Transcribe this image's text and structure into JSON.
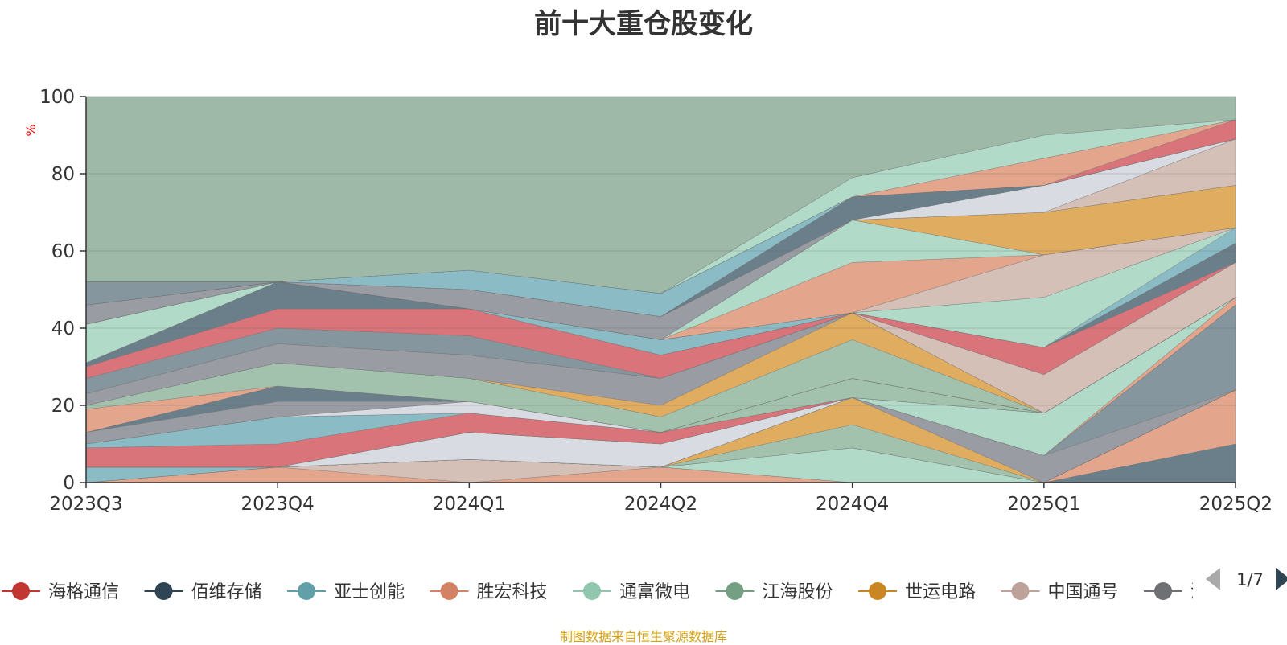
{
  "chart_data": {
    "type": "area",
    "title": "前十大重仓股变化",
    "ylabel": "%",
    "ylim": [
      0,
      100
    ],
    "yticks": [
      0,
      20,
      40,
      60,
      80,
      100
    ],
    "categories": [
      "2023Q3",
      "2023Q4",
      "2024Q1",
      "2024Q2",
      "2024Q4",
      "2025Q1",
      "2025Q2"
    ],
    "grid": true,
    "legend_position": "bottom",
    "bands": [
      {
        "color": "#6b7f8a",
        "lower": [
          0,
          0,
          0,
          0,
          0,
          0,
          0
        ],
        "upper": [
          0,
          0,
          0,
          0,
          0,
          0,
          10
        ]
      },
      {
        "color": "#e3a68c",
        "lower": [
          0,
          0,
          0,
          0,
          0,
          0,
          10
        ],
        "upper": [
          0,
          4,
          0,
          4,
          0,
          0,
          24
        ]
      },
      {
        "color": "#d5c0b8",
        "lower": [
          0,
          4,
          0,
          4,
          0,
          0,
          24
        ],
        "upper": [
          0,
          4,
          6,
          4,
          0,
          0,
          24
        ]
      },
      {
        "color": "#b2dac8",
        "lower": [
          0,
          4,
          6,
          4,
          0,
          0,
          24
        ],
        "upper": [
          0,
          4,
          6,
          4,
          9,
          0,
          24
        ]
      },
      {
        "color": "#8bbcc5",
        "lower": [
          0,
          4,
          6,
          4,
          9,
          0,
          24
        ],
        "upper": [
          4,
          4,
          6,
          4,
          9,
          0,
          24
        ]
      },
      {
        "color": "#a3c2ad",
        "lower": [
          4,
          4,
          6,
          4,
          9,
          0,
          24
        ],
        "upper": [
          4,
          4,
          6,
          4,
          15,
          0,
          24
        ]
      },
      {
        "color": "#e0ac5f",
        "lower": [
          4,
          4,
          6,
          4,
          15,
          0,
          24
        ],
        "upper": [
          4,
          4,
          6,
          4,
          22,
          0,
          24
        ]
      },
      {
        "color": "#999ca3",
        "lower": [
          4,
          4,
          6,
          4,
          22,
          0,
          24
        ],
        "upper": [
          4,
          4,
          6,
          4,
          22,
          7,
          24
        ]
      },
      {
        "color": "#86969e",
        "lower": [
          4,
          4,
          6,
          4,
          22,
          7,
          24
        ],
        "upper": [
          4,
          4,
          6,
          4,
          22,
          7,
          46
        ]
      },
      {
        "color": "#d8dce2",
        "lower": [
          4,
          4,
          6,
          4,
          22,
          7,
          46
        ],
        "upper": [
          4,
          4,
          13,
          10,
          22,
          7,
          46
        ]
      },
      {
        "color": "#e3a68c",
        "lower": [
          4,
          4,
          13,
          10,
          22,
          7,
          46
        ],
        "upper": [
          4,
          4,
          13,
          10,
          22,
          7,
          48
        ]
      },
      {
        "color": "#b2dac8",
        "lower": [
          4,
          4,
          13,
          10,
          22,
          7,
          48
        ],
        "upper": [
          4,
          4,
          13,
          10,
          22,
          18,
          48
        ]
      },
      {
        "color": "#d9747a",
        "lower": [
          4,
          4,
          13,
          10,
          22,
          18,
          48
        ],
        "upper": [
          9,
          10,
          18,
          13,
          22,
          18,
          48
        ]
      },
      {
        "color": "#8bbcc5",
        "lower": [
          9,
          10,
          18,
          13,
          22,
          18,
          48
        ],
        "upper": [
          10,
          17,
          18,
          13,
          22,
          18,
          48
        ]
      },
      {
        "color": "#a3c2ad",
        "lower": [
          10,
          17,
          18,
          13,
          22,
          18,
          48
        ],
        "upper": [
          10,
          17,
          18,
          13,
          27,
          18,
          48
        ]
      },
      {
        "color": "#d8dce2",
        "lower": [
          10,
          17,
          18,
          13,
          27,
          18,
          48
        ],
        "upper": [
          10,
          17,
          21,
          13,
          27,
          18,
          48
        ]
      },
      {
        "color": "#999ca3",
        "lower": [
          10,
          17,
          21,
          13,
          27,
          18,
          48
        ],
        "upper": [
          13,
          21,
          21,
          13,
          27,
          18,
          48
        ]
      },
      {
        "color": "#6b7f8a",
        "lower": [
          13,
          21,
          21,
          13,
          27,
          18,
          48
        ],
        "upper": [
          13,
          25,
          21,
          13,
          27,
          18,
          48
        ]
      },
      {
        "color": "#e3a68c",
        "lower": [
          13,
          25,
          21,
          13,
          27,
          18,
          48
        ],
        "upper": [
          19,
          25,
          21,
          13,
          27,
          18,
          48
        ]
      },
      {
        "color": "#a3c2ad",
        "lower": [
          19,
          25,
          21,
          13,
          27,
          18,
          48
        ],
        "upper": [
          20,
          31,
          27,
          17,
          37,
          18,
          48
        ]
      },
      {
        "color": "#e0ac5f",
        "lower": [
          20,
          31,
          27,
          17,
          37,
          18,
          48
        ],
        "upper": [
          20,
          31,
          27,
          20,
          44,
          18,
          48
        ]
      },
      {
        "color": "#999ca3",
        "lower": [
          20,
          31,
          27,
          20,
          44,
          18,
          48
        ],
        "upper": [
          23,
          36,
          33,
          27,
          44,
          18,
          48
        ]
      },
      {
        "color": "#d5c0b8",
        "lower": [
          23,
          36,
          33,
          27,
          44,
          18,
          48
        ],
        "upper": [
          23,
          36,
          33,
          27,
          44,
          28,
          57
        ]
      },
      {
        "color": "#86969e",
        "lower": [
          23,
          36,
          33,
          27,
          44,
          28,
          57
        ],
        "upper": [
          27,
          40,
          38,
          27,
          44,
          28,
          57
        ]
      },
      {
        "color": "#d9747a",
        "lower": [
          27,
          40,
          38,
          27,
          44,
          28,
          57
        ],
        "upper": [
          30,
          45,
          45,
          33,
          44,
          35,
          57
        ]
      },
      {
        "color": "#6b7f8a",
        "lower": [
          30,
          45,
          45,
          33,
          44,
          35,
          57
        ],
        "upper": [
          31,
          52,
          45,
          33,
          44,
          35,
          62
        ]
      },
      {
        "color": "#8bbcc5",
        "lower": [
          31,
          52,
          45,
          33,
          44,
          35,
          62
        ],
        "upper": [
          31,
          52,
          45,
          37,
          44,
          35,
          66
        ]
      },
      {
        "color": "#b2dac8",
        "lower": [
          31,
          52,
          45,
          37,
          44,
          35,
          66
        ],
        "upper": [
          41,
          52,
          45,
          37,
          44,
          48,
          66
        ]
      },
      {
        "color": "#d5c0b8",
        "lower": [
          41,
          52,
          45,
          37,
          44,
          48,
          66
        ],
        "upper": [
          41,
          52,
          45,
          37,
          44,
          59,
          66
        ]
      },
      {
        "color": "#e3a68c",
        "lower": [
          41,
          52,
          45,
          37,
          44,
          59,
          66
        ],
        "upper": [
          41,
          52,
          45,
          37,
          57,
          59,
          66
        ]
      },
      {
        "color": "#b2dac8",
        "lower": [
          41,
          52,
          45,
          37,
          57,
          59,
          66
        ],
        "upper": [
          41,
          52,
          45,
          37,
          68,
          59,
          66
        ]
      },
      {
        "color": "#e0ac5f",
        "lower": [
          41,
          52,
          45,
          37,
          68,
          59,
          66
        ],
        "upper": [
          41,
          52,
          45,
          37,
          68,
          70,
          77
        ]
      },
      {
        "color": "#999ca3",
        "lower": [
          41,
          52,
          45,
          37,
          68,
          70,
          77
        ],
        "upper": [
          46,
          52,
          50,
          43,
          68,
          70,
          77
        ]
      },
      {
        "color": "#d5c0b8",
        "lower": [
          46,
          52,
          50,
          43,
          68,
          70,
          77
        ],
        "upper": [
          46,
          52,
          50,
          43,
          68,
          70,
          89
        ]
      },
      {
        "color": "#d8dce2",
        "lower": [
          46,
          52,
          50,
          43,
          68,
          70,
          89
        ],
        "upper": [
          46,
          52,
          50,
          43,
          68,
          77,
          89
        ]
      },
      {
        "color": "#6b7f8a",
        "lower": [
          46,
          52,
          50,
          43,
          68,
          77,
          89
        ],
        "upper": [
          46,
          52,
          50,
          43,
          74,
          77,
          89
        ]
      },
      {
        "color": "#86969e",
        "lower": [
          46,
          52,
          50,
          43,
          74,
          77,
          89
        ],
        "upper": [
          52,
          52,
          50,
          43,
          74,
          77,
          89
        ]
      },
      {
        "color": "#8bbcc5",
        "lower": [
          52,
          52,
          50,
          43,
          74,
          77,
          89
        ],
        "upper": [
          52,
          52,
          55,
          49,
          74,
          77,
          89
        ]
      },
      {
        "color": "#d9747a",
        "lower": [
          52,
          52,
          55,
          49,
          74,
          77,
          89
        ],
        "upper": [
          52,
          52,
          55,
          49,
          74,
          77,
          94
        ]
      },
      {
        "color": "#e3a68c",
        "lower": [
          52,
          52,
          55,
          49,
          74,
          77,
          94
        ],
        "upper": [
          52,
          52,
          55,
          49,
          74,
          84,
          94
        ]
      },
      {
        "color": "#b2dac8",
        "lower": [
          52,
          52,
          55,
          49,
          74,
          84,
          94
        ],
        "upper": [
          52,
          52,
          55,
          49,
          79,
          90,
          94
        ]
      },
      {
        "color": "#9eb9a8",
        "lower": [
          52,
          52,
          55,
          49,
          79,
          90,
          94
        ],
        "upper": [
          100,
          100,
          100,
          100,
          100,
          100,
          100
        ]
      }
    ]
  },
  "legend": {
    "items": [
      {
        "label": "海格通信",
        "color": "#c23531"
      },
      {
        "label": "佰维存储",
        "color": "#2f4554"
      },
      {
        "label": "亚士创能",
        "color": "#61a0a8"
      },
      {
        "label": "胜宏科技",
        "color": "#d48265"
      },
      {
        "label": "通富微电",
        "color": "#91c7ae"
      },
      {
        "label": "江海股份",
        "color": "#749f83"
      },
      {
        "label": "世运电路",
        "color": "#ca8622"
      },
      {
        "label": "中国通号",
        "color": "#bda29a"
      },
      {
        "label": "沪电股份",
        "color": "#6e7074"
      }
    ],
    "page_indicator": "1/7",
    "prev_icon": "triangle-left-icon",
    "next_icon": "triangle-right-icon"
  },
  "source_note": "制图数据来自恒生聚源数据库"
}
